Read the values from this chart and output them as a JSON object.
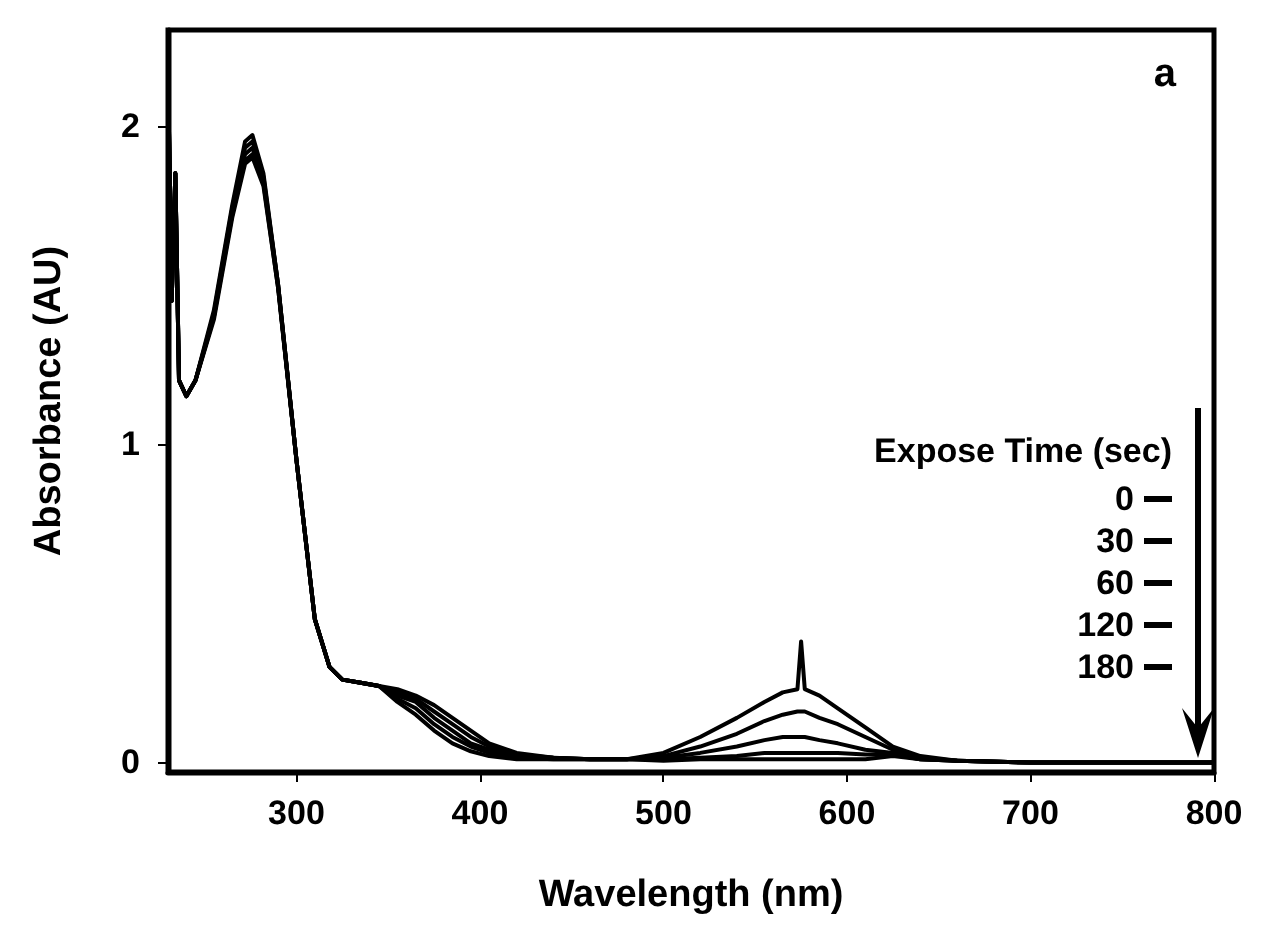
{
  "chart_data": {
    "type": "line",
    "xlabel": "Wavelength (nm)",
    "ylabel": "Absorbance (AU)",
    "legend_title": "Expose Time (sec)",
    "annotations": [
      "a"
    ],
    "x": [
      230,
      232,
      234,
      236,
      240,
      245,
      255,
      265,
      272,
      276,
      282,
      290,
      300,
      310,
      318,
      325,
      335,
      345,
      355,
      365,
      375,
      385,
      395,
      405,
      420,
      440,
      460,
      480,
      500,
      520,
      540,
      555,
      565,
      573,
      575,
      577,
      585,
      595,
      610,
      625,
      640,
      660,
      700,
      750,
      800
    ],
    "series": [
      {
        "name": "0",
        "color": "#000000",
        "values": [
          2.18,
          1.45,
          1.85,
          1.2,
          1.15,
          1.2,
          1.42,
          1.75,
          1.95,
          1.97,
          1.85,
          1.5,
          0.95,
          0.45,
          0.3,
          0.26,
          0.25,
          0.24,
          0.23,
          0.21,
          0.18,
          0.14,
          0.1,
          0.06,
          0.03,
          0.015,
          0.01,
          0.01,
          0.03,
          0.08,
          0.14,
          0.19,
          0.22,
          0.23,
          0.38,
          0.23,
          0.21,
          0.17,
          0.11,
          0.05,
          0.02,
          0.005,
          0,
          0,
          0
        ]
      },
      {
        "name": "30",
        "color": "#000000",
        "values": [
          2.18,
          1.45,
          1.85,
          1.2,
          1.15,
          1.2,
          1.41,
          1.74,
          1.93,
          1.95,
          1.84,
          1.5,
          0.95,
          0.45,
          0.3,
          0.26,
          0.25,
          0.24,
          0.22,
          0.2,
          0.16,
          0.12,
          0.08,
          0.05,
          0.025,
          0.015,
          0.01,
          0.01,
          0.02,
          0.05,
          0.09,
          0.13,
          0.15,
          0.16,
          0.16,
          0.16,
          0.14,
          0.12,
          0.08,
          0.04,
          0.015,
          0.005,
          0,
          0,
          0
        ]
      },
      {
        "name": "60",
        "color": "#000000",
        "values": [
          2.18,
          1.45,
          1.85,
          1.2,
          1.15,
          1.2,
          1.4,
          1.73,
          1.91,
          1.93,
          1.83,
          1.5,
          0.95,
          0.45,
          0.3,
          0.26,
          0.25,
          0.24,
          0.21,
          0.19,
          0.14,
          0.1,
          0.06,
          0.04,
          0.02,
          0.015,
          0.01,
          0.01,
          0.015,
          0.03,
          0.05,
          0.07,
          0.08,
          0.08,
          0.08,
          0.08,
          0.07,
          0.06,
          0.04,
          0.03,
          0.01,
          0.005,
          0,
          0,
          0
        ]
      },
      {
        "name": "120",
        "color": "#000000",
        "values": [
          2.18,
          1.45,
          1.85,
          1.2,
          1.15,
          1.2,
          1.4,
          1.72,
          1.89,
          1.91,
          1.82,
          1.49,
          0.95,
          0.45,
          0.3,
          0.26,
          0.25,
          0.24,
          0.2,
          0.17,
          0.12,
          0.08,
          0.05,
          0.03,
          0.015,
          0.01,
          0.01,
          0.01,
          0.01,
          0.015,
          0.02,
          0.03,
          0.03,
          0.03,
          0.03,
          0.03,
          0.03,
          0.03,
          0.025,
          0.025,
          0.01,
          0.005,
          0,
          0,
          0
        ]
      },
      {
        "name": "180",
        "color": "#000000",
        "values": [
          2.18,
          1.45,
          1.85,
          1.2,
          1.15,
          1.2,
          1.39,
          1.71,
          1.88,
          1.9,
          1.81,
          1.49,
          0.95,
          0.45,
          0.3,
          0.26,
          0.25,
          0.24,
          0.19,
          0.15,
          0.1,
          0.06,
          0.035,
          0.02,
          0.01,
          0.01,
          0.01,
          0.01,
          0.005,
          0.01,
          0.01,
          0.01,
          0.01,
          0.01,
          0.01,
          0.01,
          0.01,
          0.01,
          0.01,
          0.02,
          0.01,
          0.005,
          0,
          0,
          0
        ]
      }
    ],
    "xlim": [
      230,
      800
    ],
    "xticks": [
      300,
      400,
      500,
      600,
      700,
      800
    ],
    "ylim": [
      -0.03,
      2.3
    ],
    "yticks": [
      0,
      1,
      2
    ],
    "grid": false,
    "legend": "right",
    "marker": "none",
    "line_style": "solid"
  }
}
